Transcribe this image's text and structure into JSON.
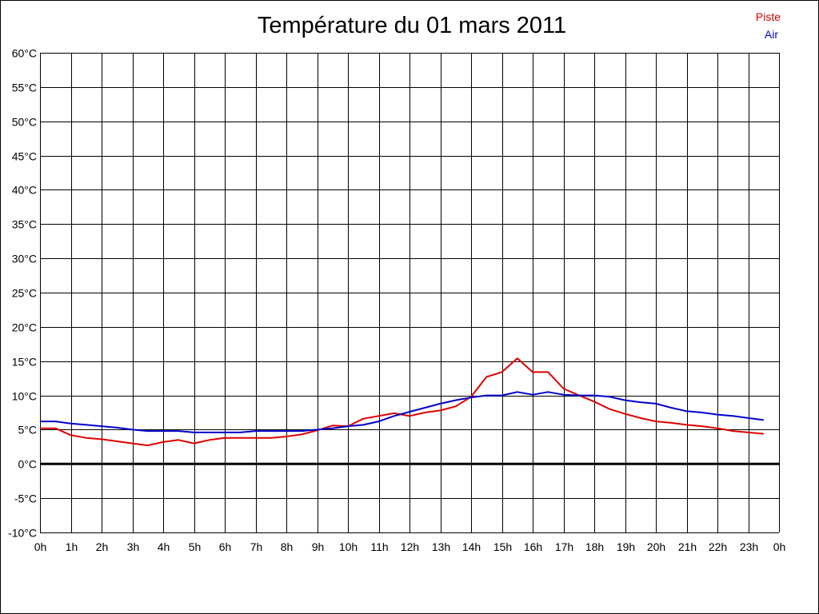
{
  "chart_data": {
    "type": "line",
    "title": "Température du 01 mars 2011",
    "xlabel": "",
    "ylabel": "",
    "ylim": [
      -10,
      60
    ],
    "xlim": [
      0,
      24
    ],
    "grid": true,
    "legend_position": "top-right",
    "y_ticks": [
      -10,
      -5,
      0,
      5,
      10,
      15,
      20,
      25,
      30,
      35,
      40,
      45,
      50,
      55,
      60
    ],
    "y_tick_labels": [
      "-10°C",
      "-5°C",
      "0°C",
      "5°C",
      "10°C",
      "15°C",
      "20°C",
      "25°C",
      "30°C",
      "35°C",
      "40°C",
      "45°C",
      "50°C",
      "55°C",
      "60°C"
    ],
    "x_tick_labels": [
      "0h",
      "1h",
      "2h",
      "3h",
      "4h",
      "5h",
      "6h",
      "7h",
      "8h",
      "9h",
      "10h",
      "11h",
      "12h",
      "13h",
      "14h",
      "15h",
      "16h",
      "17h",
      "18h",
      "19h",
      "20h",
      "21h",
      "22h",
      "23h",
      "0h"
    ],
    "series": [
      {
        "name": "Piste",
        "color": "#dd0000",
        "x": [
          0,
          0.5,
          1,
          1.5,
          2,
          2.5,
          3,
          3.5,
          4,
          4.5,
          5,
          5.5,
          6,
          6.5,
          7,
          7.5,
          8,
          8.5,
          9,
          9.5,
          10,
          10.5,
          11,
          11.5,
          12,
          12.5,
          13,
          13.5,
          14,
          14.5,
          15,
          15.5,
          16,
          16.5,
          17,
          17.5,
          18,
          18.5,
          19,
          19.5,
          20,
          20.5,
          21,
          21.5,
          22,
          22.5,
          23,
          23.5
        ],
        "values": [
          5.2,
          5.2,
          4.2,
          3.8,
          3.6,
          3.3,
          3.0,
          2.7,
          3.2,
          3.5,
          3.0,
          3.5,
          3.8,
          3.8,
          3.8,
          3.8,
          4.0,
          4.3,
          4.9,
          5.6,
          5.5,
          6.6,
          7.0,
          7.4,
          7.0,
          7.5,
          7.8,
          8.4,
          9.8,
          12.7,
          13.4,
          15.4,
          13.4,
          13.4,
          11.0,
          10.0,
          9.1,
          8.0,
          7.3,
          6.7,
          6.2,
          6.0,
          5.7,
          5.5,
          5.2,
          4.8,
          4.6,
          4.4
        ]
      },
      {
        "name": "Air",
        "color": "#0000cc",
        "x": [
          0,
          0.5,
          1,
          1.5,
          2,
          2.5,
          3,
          3.5,
          4,
          4.5,
          5,
          5.5,
          6,
          6.5,
          7,
          7.5,
          8,
          8.5,
          9,
          9.5,
          10,
          10.5,
          11,
          11.5,
          12,
          12.5,
          13,
          13.5,
          14,
          14.5,
          15,
          15.5,
          16,
          16.5,
          17,
          17.5,
          18,
          18.5,
          19,
          19.5,
          20,
          20.5,
          21,
          21.5,
          22,
          22.5,
          23,
          23.5
        ],
        "values": [
          6.2,
          6.2,
          5.9,
          5.7,
          5.5,
          5.3,
          5.0,
          4.8,
          4.8,
          4.8,
          4.6,
          4.6,
          4.6,
          4.6,
          4.8,
          4.8,
          4.8,
          4.8,
          5.0,
          5.2,
          5.5,
          5.7,
          6.2,
          7.0,
          7.6,
          8.2,
          8.8,
          9.3,
          9.7,
          10.0,
          10.0,
          10.5,
          10.1,
          10.5,
          10.1,
          10.0,
          10.0,
          9.8,
          9.3,
          9.0,
          8.8,
          8.2,
          7.7,
          7.5,
          7.2,
          7.0,
          6.7,
          6.4
        ]
      }
    ]
  }
}
